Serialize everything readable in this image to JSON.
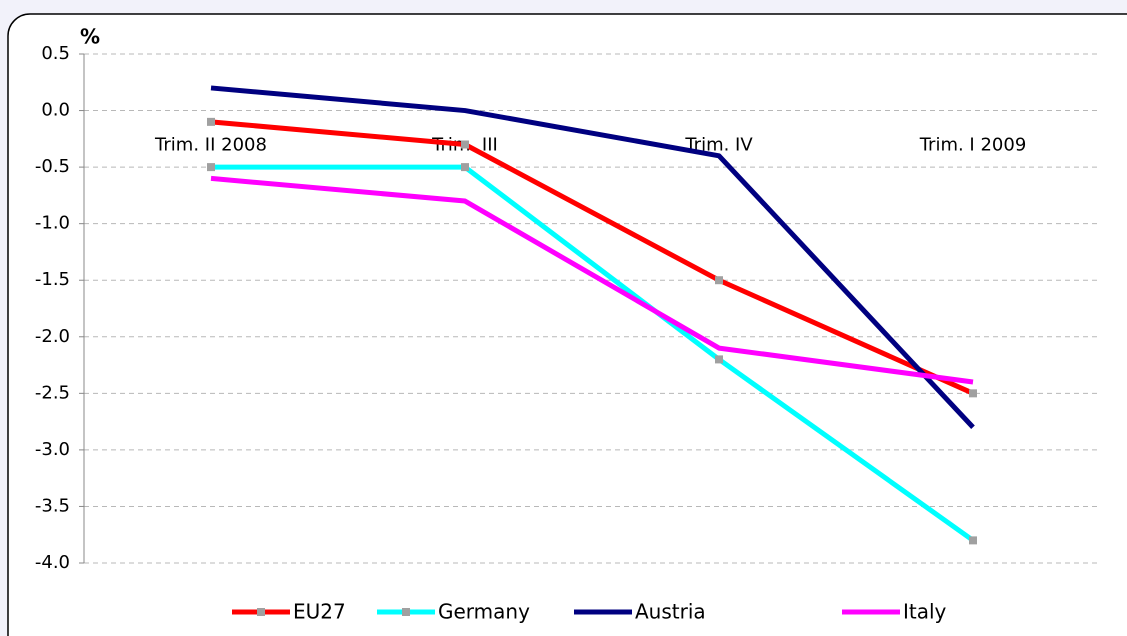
{
  "chart_data": {
    "type": "line",
    "y_label": "%",
    "categories": [
      "Trim. II 2008",
      "Trim. III",
      "Trim. IV",
      "Trim. I 2009"
    ],
    "series": [
      {
        "name": "EU27",
        "color": "#ff0000",
        "markers": true,
        "values": [
          -0.1,
          -0.3,
          -1.5,
          -2.5
        ]
      },
      {
        "name": "Germany",
        "color": "#00ffff",
        "markers": true,
        "values": [
          -0.5,
          -0.5,
          -2.2,
          -3.8
        ]
      },
      {
        "name": "Austria",
        "color": "#000080",
        "markers": false,
        "values": [
          0.2,
          0.0,
          -0.4,
          -2.8
        ]
      },
      {
        "name": "Italy",
        "color": "#ff00ff",
        "markers": false,
        "values": [
          -0.6,
          -0.8,
          -2.1,
          -2.4
        ]
      }
    ],
    "marker_color": "#a0a0a0",
    "ylim": [
      -4,
      0.5
    ],
    "yticks": [
      0.5,
      {
        "value": 0,
        "label": "0.0"
      },
      -0.5,
      {
        "value": -1,
        "label": "-1.0"
      },
      -1.5,
      {
        "value": -2,
        "label": "-2.0"
      },
      -2.5,
      {
        "value": -3,
        "label": "-3.0"
      },
      -3.5,
      {
        "value": -4,
        "label": "-4.0"
      }
    ],
    "grid": true,
    "legend": "bottom"
  }
}
